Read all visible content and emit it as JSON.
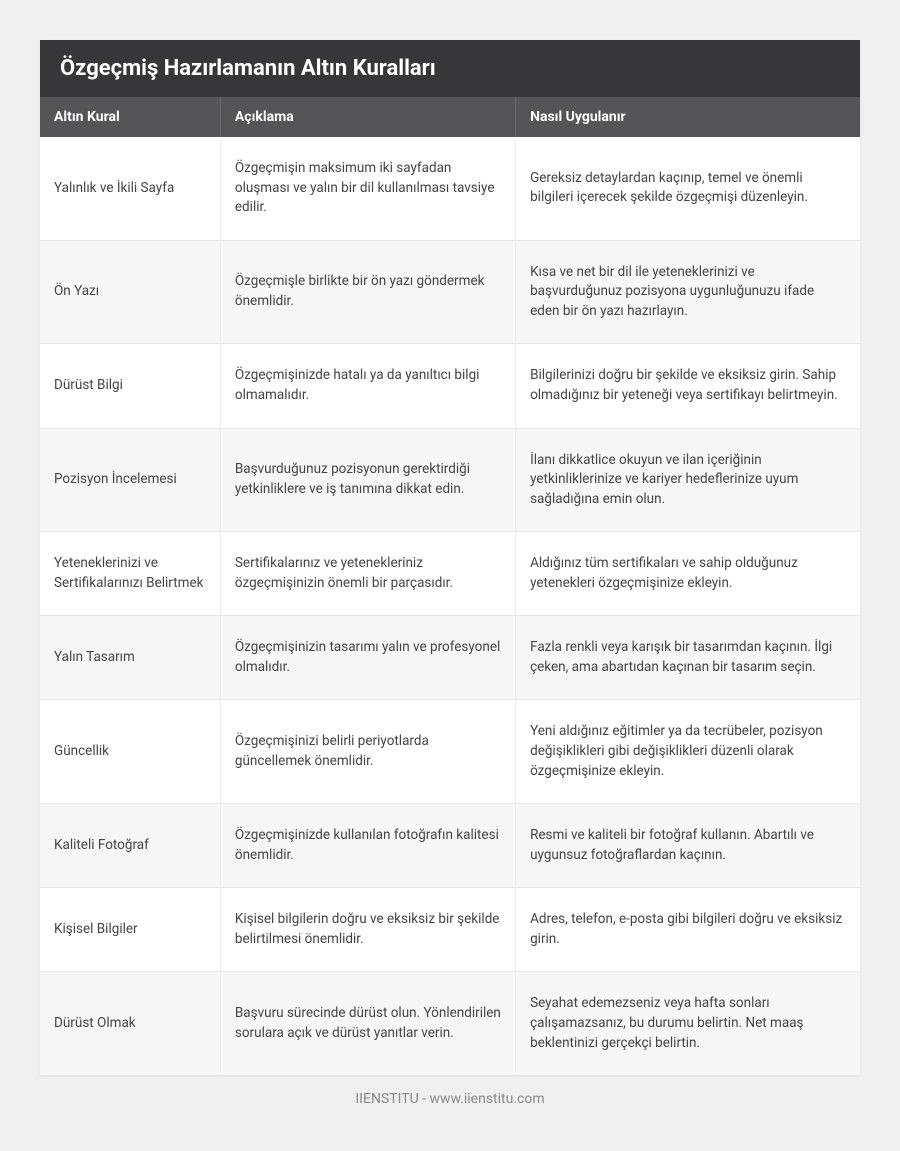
{
  "title": "Özgeçmiş Hazırlamanın Altın Kuralları",
  "columns": [
    "Altın Kural",
    "Açıklama",
    "Nasıl Uygulanır"
  ],
  "rows": [
    {
      "rule": "Yalınlık ve İkili Sayfa",
      "desc": "Özgeçmişin maksimum iki sayfadan oluşması ve yalın bir dil kullanılması tavsiye edilir.",
      "how": "Gereksiz detaylardan kaçınıp, temel ve önemli bilgileri içerecek şekilde özgeçmişi düzenleyin."
    },
    {
      "rule": "Ön Yazı",
      "desc": "Özgeçmişle birlikte bir ön yazı göndermek önemlidir.",
      "how": "Kısa ve net bir dil ile yeteneklerinizi ve başvurduğunuz pozisyona uygunluğunuzu ifade eden bir ön yazı hazırlayın."
    },
    {
      "rule": "Dürüst Bilgi",
      "desc": "Özgeçmişinizde hatalı ya da yanıltıcı bilgi olmamalıdır.",
      "how": "Bilgilerinizi doğru bir şekilde ve eksiksiz girin. Sahip olmadığınız bir yeteneği veya sertifikayı belirtmeyin."
    },
    {
      "rule": "Pozisyon İncelemesi",
      "desc": "Başvurduğunuz pozisyonun gerektirdiği yetkinliklere ve iş tanımına dikkat edin.",
      "how": "İlanı dikkatlice okuyun ve ilan içeriğinin yetkinliklerinize ve kariyer hedeflerinize uyum sağladığına emin olun."
    },
    {
      "rule": "Yeteneklerinizi ve Sertifikalarınızı Belirtmek",
      "desc": "Sertifikalarınız ve yetenekleriniz özgeçmişinizin önemli bir parçasıdır.",
      "how": "Aldığınız tüm sertifikaları ve sahip olduğunuz yetenekleri özgeçmişinize ekleyin."
    },
    {
      "rule": "Yalın Tasarım",
      "desc": "Özgeçmişinizin tasarımı yalın ve profesyonel olmalıdır.",
      "how": "Fazla renkli veya karışık bir tasarımdan kaçının. İlgi çeken, ama abartıdan kaçınan bir tasarım seçin."
    },
    {
      "rule": "Güncellik",
      "desc": "Özgeçmişinizi belirli periyotlarda güncellemek önemlidir.",
      "how": "Yeni aldığınız eğitimler ya da tecrübeler, pozisyon değişiklikleri gibi değişiklikleri düzenli olarak özgeçmişinize ekleyin."
    },
    {
      "rule": "Kaliteli Fotoğraf",
      "desc": "Özgeçmişinizde kullanılan fotoğrafın kalitesi önemlidir.",
      "how": "Resmi ve kaliteli bir fotoğraf kullanın. Abartılı ve uygunsuz fotoğraflardan kaçının."
    },
    {
      "rule": "Kişisel Bilgiler",
      "desc": "Kişisel bilgilerin doğru ve eksiksiz bir şekilde belirtilmesi önemlidir.",
      "how": "Adres, telefon, e-posta gibi bilgileri doğru ve eksiksiz girin."
    },
    {
      "rule": "Dürüst Olmak",
      "desc": "Başvuru sürecinde dürüst olun. Yönlendirilen sorulara açık ve dürüst yanıtlar verin.",
      "how": "Seyahat edemezseniz veya hafta sonları çalışamazsanız, bu durumu belirtin. Net maaş beklentinizi gerçekçi belirtin."
    }
  ],
  "footer": "IIENSTITU - www.iienstitu.com",
  "style": {
    "title_bg": "#37373a",
    "header_bg": "#555558",
    "alt_row_bg": "#f7f7f7",
    "border_color": "#e6e6e6",
    "page_bg": "#f0f0f0",
    "card_bg": "#ffffff",
    "text_color": "#444",
    "footer_color": "#888",
    "title_fontsize": 22,
    "header_fontsize": 14,
    "cell_fontsize": 13.5,
    "col_widths_pct": [
      22,
      36,
      42
    ]
  }
}
